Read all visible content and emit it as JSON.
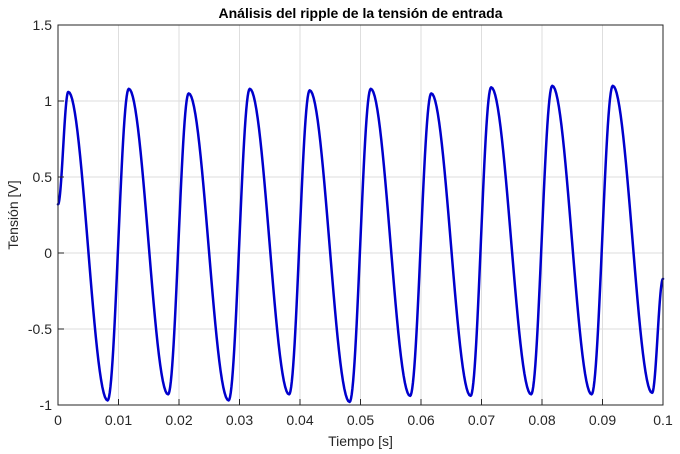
{
  "chart_data": {
    "type": "line",
    "title": "Análisis del ripple de la tensión de entrada",
    "xlabel": "Tiempo [s]",
    "ylabel": "Tensión [V]",
    "xlim": [
      0,
      0.1
    ],
    "ylim": [
      -1,
      1.5
    ],
    "xticks": [
      "0",
      "0.01",
      "0.02",
      "0.03",
      "0.04",
      "0.05",
      "0.06",
      "0.07",
      "0.08",
      "0.09",
      "0.1"
    ],
    "yticks": [
      "1.5",
      "1",
      "0.5",
      "0",
      "-0.5",
      "-1"
    ],
    "xtick_values": [
      0,
      0.01,
      0.02,
      0.03,
      0.04,
      0.05,
      0.06,
      0.07,
      0.08,
      0.09,
      0.1
    ],
    "ytick_values": [
      1.5,
      1,
      0.5,
      0,
      -0.5,
      -1
    ],
    "grid": true,
    "series": [
      {
        "color": "#0000cc",
        "x": [
          0,
          0.0017,
          0.0082,
          0.0117,
          0.0182,
          0.0216,
          0.0282,
          0.0317,
          0.0382,
          0.0416,
          0.0482,
          0.0517,
          0.0582,
          0.0617,
          0.0682,
          0.0716,
          0.0782,
          0.0817,
          0.0882,
          0.0917,
          0.0982,
          0.1
        ],
        "y": [
          0.32,
          1.06,
          -0.97,
          1.08,
          -0.93,
          1.05,
          -0.97,
          1.08,
          -0.93,
          1.07,
          -0.98,
          1.08,
          -0.94,
          1.05,
          -0.94,
          1.09,
          -0.93,
          1.1,
          -0.93,
          1.1,
          -0.92,
          -0.17
        ]
      }
    ]
  }
}
